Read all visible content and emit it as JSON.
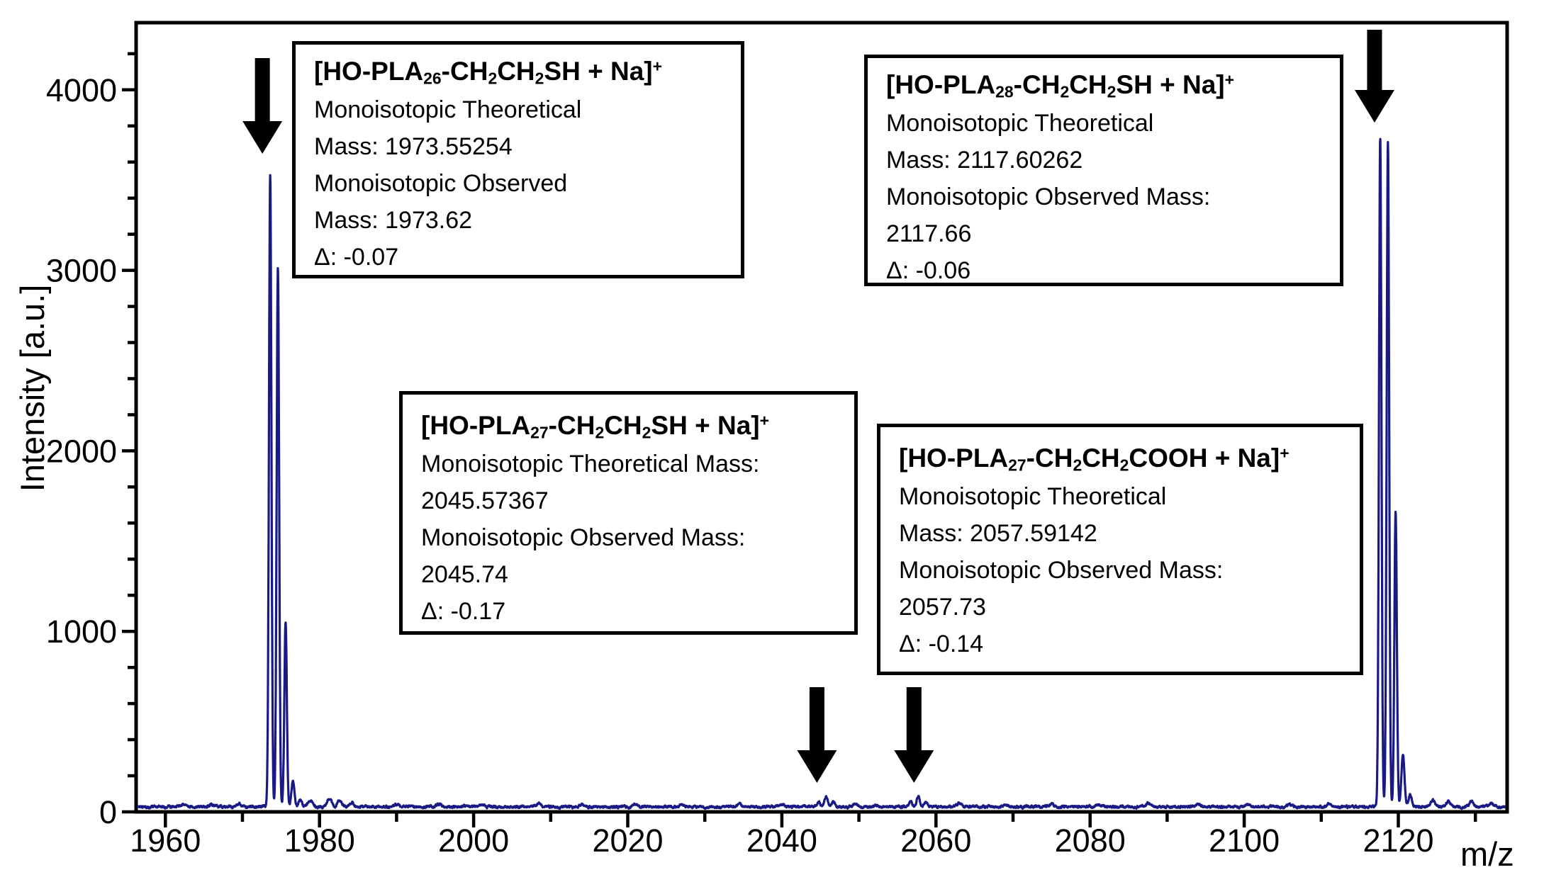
{
  "chart_data": {
    "type": "line",
    "subtype": "mass-spectrum",
    "title": "",
    "xlabel": "m/z",
    "ylabel": "Intensity [a.u.]",
    "xlim": [
      1956.2,
      2134.5
    ],
    "ylim": [
      0,
      4370
    ],
    "x_major_ticks": [
      1960,
      1980,
      2000,
      2020,
      2040,
      2060,
      2080,
      2100,
      2120
    ],
    "x_minor_tick_step": 10,
    "y_major_ticks": [
      0,
      1000,
      2000,
      3000,
      4000
    ],
    "y_minor_tick_step": 200,
    "grid": false,
    "legend": false,
    "line_color": "#1a1a85",
    "axis_color": "#000000",
    "baseline_intensity": 28,
    "noise_amplitude": 7,
    "peak_clusters": [
      {
        "assignment": "[HO-PLA26-CH2CH2SH + Na]+",
        "peaks": [
          [
            1973.6,
            3520
          ],
          [
            1974.6,
            3005
          ],
          [
            1975.6,
            1050
          ],
          [
            1976.55,
            160
          ],
          [
            1977.5,
            60
          ]
        ]
      },
      {
        "assignment": "[HO-PLA27-CH2CH2SH + Na]+",
        "peaks": [
          [
            2044.8,
            42
          ],
          [
            2045.75,
            78
          ],
          [
            2046.7,
            52
          ]
        ]
      },
      {
        "assignment": "[HO-PLA27-CH2CH2COOH + Na]+",
        "peaks": [
          [
            2056.7,
            48
          ],
          [
            2057.7,
            82
          ],
          [
            2058.7,
            48
          ]
        ]
      },
      {
        "assignment": "[HO-PLA28-CH2CH2SH + Na]+",
        "peaks": [
          [
            2117.65,
            3730
          ],
          [
            2118.65,
            3700
          ],
          [
            2119.65,
            1650
          ],
          [
            2120.6,
            305
          ],
          [
            2121.55,
            90
          ]
        ]
      }
    ],
    "noise_bumps": [
      [
        1962.5,
        16
      ],
      [
        1966,
        13
      ],
      [
        1969.5,
        18
      ],
      [
        1978.8,
        38
      ],
      [
        1981.3,
        46
      ],
      [
        1982.6,
        36
      ],
      [
        1984.2,
        20
      ],
      [
        1990,
        13
      ],
      [
        1995.5,
        17
      ],
      [
        2001,
        14
      ],
      [
        2008.5,
        20
      ],
      [
        2014,
        13
      ],
      [
        2021,
        16
      ],
      [
        2027,
        12
      ],
      [
        2034.5,
        18
      ],
      [
        2040,
        14
      ],
      [
        2049.5,
        16
      ],
      [
        2052.3,
        12
      ],
      [
        2063,
        20
      ],
      [
        2069,
        13
      ],
      [
        2075,
        16
      ],
      [
        2081,
        12
      ],
      [
        2087.5,
        18
      ],
      [
        2094,
        13
      ],
      [
        2100.5,
        16
      ],
      [
        2106,
        12
      ],
      [
        2111,
        14
      ],
      [
        2124.5,
        38
      ],
      [
        2126.5,
        28
      ],
      [
        2129.5,
        33
      ],
      [
        2132,
        22
      ]
    ],
    "annotations": [
      {
        "formula": "[HO-PLA~26~-CH~2~CH~2~SH + Na]^+^",
        "lines": [
          "Monoisotopic Theoretical",
          "Mass: 1973.55254",
          "Monoisotopic Observed",
          "Mass: 1973.62",
          "Δ: -0.07"
        ],
        "theoretical_mass": "1973.55254",
        "observed_mass": "1973.62",
        "delta": "-0.07",
        "arrow_target_mz": 1973.6
      },
      {
        "formula": "[HO-PLA~28~-CH~2~CH~2~SH + Na]^+^",
        "lines": [
          "Monoisotopic Theoretical",
          "Mass: 2117.60262",
          "Monoisotopic Observed Mass:",
          "2117.66",
          "Δ: -0.06"
        ],
        "theoretical_mass": "2117.60262",
        "observed_mass": "2117.66",
        "delta": "-0.06",
        "arrow_target_mz": 2117.65
      },
      {
        "formula": "[HO-PLA~27~-CH~2~CH~2~SH + Na]^+^",
        "lines": [
          "Monoisotopic Theoretical Mass:",
          "2045.57367",
          "Monoisotopic Observed Mass:",
          "2045.74",
          "Δ: -0.17"
        ],
        "theoretical_mass": "2045.57367",
        "observed_mass": "2045.74",
        "delta": "-0.17",
        "arrow_target_mz": 2045.75
      },
      {
        "formula": "[HO-PLA~27~-CH~2~CH~2~COOH + Na]^+^",
        "lines": [
          "Monoisotopic Theoretical",
          "Mass: 2057.59142",
          "Monoisotopic Observed Mass:",
          "2057.73",
          "Δ: -0.14"
        ],
        "theoretical_mass": "2057.59142",
        "observed_mass": "2057.73",
        "delta": "-0.14",
        "arrow_target_mz": 2057.7
      }
    ]
  }
}
